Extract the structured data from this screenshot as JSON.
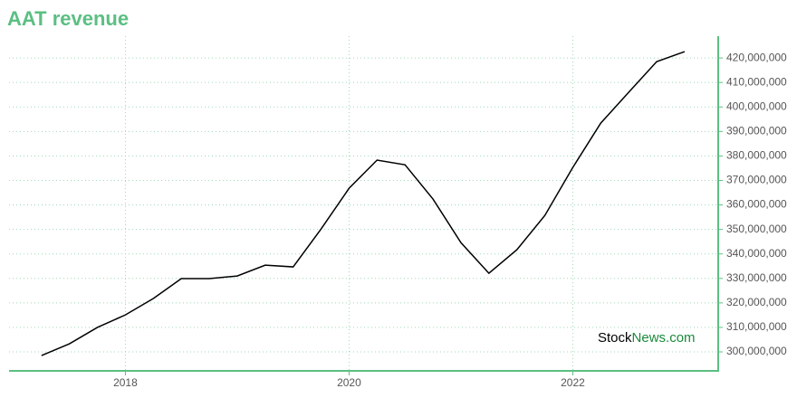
{
  "chart_data": {
    "type": "line",
    "title": "AAT revenue",
    "x": [
      2017.25,
      2017.5,
      2017.75,
      2018.0,
      2018.25,
      2018.5,
      2018.75,
      2019.0,
      2019.25,
      2019.5,
      2019.75,
      2020.0,
      2020.25,
      2020.5,
      2020.75,
      2021.0,
      2021.25,
      2021.5,
      2021.75,
      2022.0,
      2022.25,
      2022.5,
      2022.75,
      2023.0
    ],
    "series": [
      {
        "name": "revenue",
        "color": "#000000",
        "values": [
          298500000,
          303300000,
          310000000,
          315100000,
          321800000,
          329900000,
          329900000,
          331000000,
          335400000,
          334700000,
          350200000,
          366800000,
          378300000,
          376400000,
          362400000,
          344600000,
          332100000,
          341700000,
          355700000,
          375300000,
          393400000,
          406000000,
          418500000,
          422600000
        ]
      }
    ],
    "xlim": [
      2016.96,
      2023.3
    ],
    "xticks": [
      2018,
      2020,
      2022
    ],
    "ylim": [
      292250000,
      428900000
    ],
    "yticks": [
      {
        "value": 300000000,
        "label": "300,000,000"
      },
      {
        "value": 310000000,
        "label": "310,000,000"
      },
      {
        "value": 320000000,
        "label": "320,000,000"
      },
      {
        "value": 330000000,
        "label": "330,000,000"
      },
      {
        "value": 340000000,
        "label": "340,000,000"
      },
      {
        "value": 350000000,
        "label": "350,000,000"
      },
      {
        "value": 360000000,
        "label": "360,000,000"
      },
      {
        "value": 370000000,
        "label": "370,000,000"
      },
      {
        "value": 380000000,
        "label": "380,000,000"
      },
      {
        "value": 390000000,
        "label": "390,000,000"
      },
      {
        "value": 400000000,
        "label": "400,000,000"
      },
      {
        "value": 410000000,
        "label": "410,000,000"
      },
      {
        "value": 420000000,
        "label": "420,000,000"
      }
    ],
    "grid": true,
    "axis_color": "#5bbf82"
  },
  "watermark": {
    "part1": "Stock",
    "part2": "News.com"
  }
}
